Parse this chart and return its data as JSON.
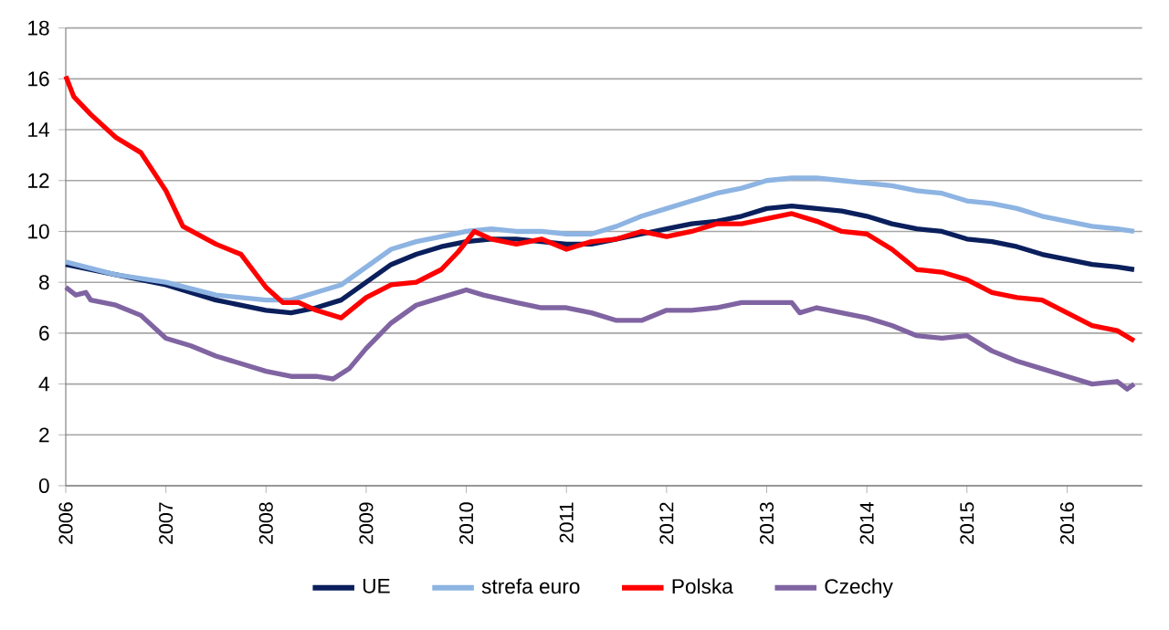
{
  "chart_data": {
    "type": "line",
    "xlim": [
      2006,
      2016.75
    ],
    "xticks": [
      2006,
      2007,
      2008,
      2009,
      2010,
      2011,
      2012,
      2013,
      2014,
      2015,
      2016
    ],
    "ylim": [
      0,
      18
    ],
    "yticks": [
      0,
      2,
      4,
      6,
      8,
      10,
      12,
      14,
      16,
      18
    ],
    "grid": "y",
    "legend": "bottom",
    "marker": "none",
    "line_style": "solid",
    "series": [
      {
        "name": "UE",
        "color": "#0a1f5c",
        "x": [
          2006,
          2006.5,
          2007,
          2007.5,
          2008,
          2008.25,
          2008.5,
          2008.75,
          2009,
          2009.25,
          2009.5,
          2009.75,
          2010,
          2010.25,
          2010.5,
          2010.75,
          2011,
          2011.25,
          2011.5,
          2011.75,
          2012,
          2012.25,
          2012.5,
          2012.75,
          2013,
          2013.25,
          2013.5,
          2013.75,
          2014,
          2014.25,
          2014.5,
          2014.75,
          2015,
          2015.25,
          2015.5,
          2015.75,
          2016,
          2016.25,
          2016.5,
          2016.67
        ],
        "values": [
          8.7,
          8.3,
          7.9,
          7.3,
          6.9,
          6.8,
          7.0,
          7.3,
          8.0,
          8.7,
          9.1,
          9.4,
          9.6,
          9.7,
          9.7,
          9.6,
          9.5,
          9.5,
          9.7,
          9.9,
          10.1,
          10.3,
          10.4,
          10.6,
          10.9,
          11.0,
          10.9,
          10.8,
          10.6,
          10.3,
          10.1,
          10.0,
          9.7,
          9.6,
          9.4,
          9.1,
          8.9,
          8.7,
          8.6,
          8.5
        ]
      },
      {
        "name": "strefa euro",
        "color": "#8db4e2",
        "x": [
          2006,
          2006.5,
          2007,
          2007.5,
          2008,
          2008.25,
          2008.5,
          2008.75,
          2009,
          2009.25,
          2009.5,
          2009.75,
          2010,
          2010.25,
          2010.5,
          2010.75,
          2011,
          2011.25,
          2011.5,
          2011.75,
          2012,
          2012.25,
          2012.5,
          2012.75,
          2013,
          2013.25,
          2013.5,
          2013.75,
          2014,
          2014.25,
          2014.5,
          2014.75,
          2015,
          2015.25,
          2015.5,
          2015.75,
          2016,
          2016.25,
          2016.5,
          2016.67
        ],
        "values": [
          8.8,
          8.3,
          8.0,
          7.5,
          7.3,
          7.3,
          7.6,
          7.9,
          8.6,
          9.3,
          9.6,
          9.8,
          10.0,
          10.1,
          10.0,
          10.0,
          9.9,
          9.9,
          10.2,
          10.6,
          10.9,
          11.2,
          11.5,
          11.7,
          12.0,
          12.1,
          12.1,
          12.0,
          11.9,
          11.8,
          11.6,
          11.5,
          11.2,
          11.1,
          10.9,
          10.6,
          10.4,
          10.2,
          10.1,
          10.0
        ]
      },
      {
        "name": "Polska",
        "color": "#ff0000",
        "x": [
          2006,
          2006.08,
          2006.25,
          2006.5,
          2006.75,
          2007,
          2007.17,
          2007.5,
          2007.75,
          2008,
          2008.17,
          2008.33,
          2008.5,
          2008.75,
          2009,
          2009.25,
          2009.5,
          2009.75,
          2009.92,
          2010.08,
          2010.25,
          2010.5,
          2010.75,
          2011,
          2011.25,
          2011.5,
          2011.75,
          2012,
          2012.25,
          2012.5,
          2012.75,
          2013,
          2013.25,
          2013.5,
          2013.75,
          2014,
          2014.25,
          2014.5,
          2014.75,
          2015,
          2015.25,
          2015.5,
          2015.75,
          2016,
          2016.25,
          2016.5,
          2016.67
        ],
        "values": [
          16.1,
          15.3,
          14.6,
          13.7,
          13.1,
          11.6,
          10.2,
          9.5,
          9.1,
          7.8,
          7.2,
          7.2,
          6.9,
          6.6,
          7.4,
          7.9,
          8.0,
          8.5,
          9.2,
          10.0,
          9.7,
          9.5,
          9.7,
          9.3,
          9.6,
          9.7,
          10.0,
          9.8,
          10.0,
          10.3,
          10.3,
          10.5,
          10.7,
          10.4,
          10.0,
          9.9,
          9.3,
          8.5,
          8.4,
          8.1,
          7.6,
          7.4,
          7.3,
          6.8,
          6.3,
          6.1,
          5.7
        ]
      },
      {
        "name": "Czechy",
        "color": "#8064a2",
        "x": [
          2006,
          2006.1,
          2006.2,
          2006.25,
          2006.5,
          2006.75,
          2007,
          2007.25,
          2007.5,
          2007.75,
          2008,
          2008.25,
          2008.5,
          2008.67,
          2008.83,
          2009,
          2009.25,
          2009.5,
          2009.75,
          2010,
          2010.17,
          2010.5,
          2010.75,
          2011,
          2011.25,
          2011.5,
          2011.75,
          2012,
          2012.25,
          2012.5,
          2012.75,
          2013,
          2013.25,
          2013.33,
          2013.5,
          2013.75,
          2014,
          2014.25,
          2014.5,
          2014.75,
          2015,
          2015.25,
          2015.5,
          2015.75,
          2016,
          2016.25,
          2016.5,
          2016.6,
          2016.67
        ],
        "values": [
          7.8,
          7.5,
          7.6,
          7.3,
          7.1,
          6.7,
          5.8,
          5.5,
          5.1,
          4.8,
          4.5,
          4.3,
          4.3,
          4.2,
          4.6,
          5.4,
          6.4,
          7.1,
          7.4,
          7.7,
          7.5,
          7.2,
          7.0,
          7.0,
          6.8,
          6.5,
          6.5,
          6.9,
          6.9,
          7.0,
          7.2,
          7.2,
          7.2,
          6.8,
          7.0,
          6.8,
          6.6,
          6.3,
          5.9,
          5.8,
          5.9,
          5.3,
          4.9,
          4.6,
          4.3,
          4.0,
          4.1,
          3.8,
          4.0
        ]
      }
    ]
  }
}
